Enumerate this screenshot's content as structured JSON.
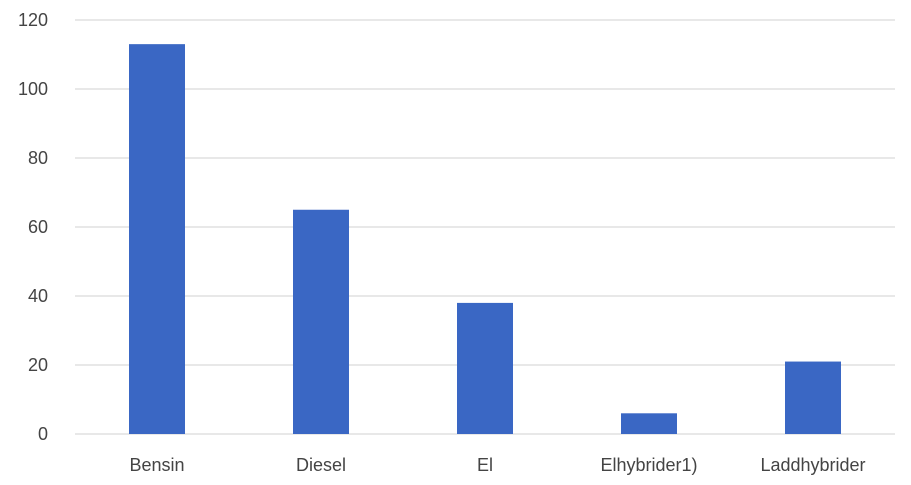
{
  "chart_data": {
    "type": "bar",
    "title": "",
    "xlabel": "",
    "ylabel": "",
    "categories": [
      "Bensin",
      "Diesel",
      "El",
      "Elhybrider1)",
      "Laddhybrider"
    ],
    "values": [
      113,
      65,
      38,
      6,
      21
    ],
    "ylim": [
      0,
      120
    ],
    "yticks": [
      0,
      20,
      40,
      60,
      80,
      100,
      120
    ],
    "grid": true,
    "legend": "none",
    "colors": {
      "bar": "#3a67c4",
      "grid": "#d9d9d9",
      "text": "#444444"
    }
  }
}
